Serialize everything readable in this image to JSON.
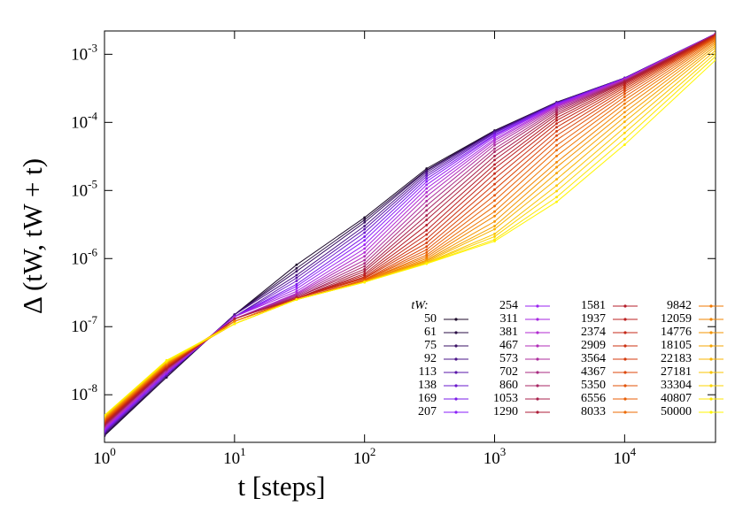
{
  "chart_data": {
    "type": "line",
    "xlabel": "t [steps]",
    "ylabel": "Δ (tW, tW + t)",
    "legend_title": "tW:",
    "log_x": true,
    "log_y": true,
    "x": [
      1,
      3,
      10,
      30,
      100,
      300,
      1000,
      3000,
      10000,
      50000
    ],
    "xlim": [
      1,
      50000
    ],
    "ylim": [
      2e-09,
      0.0022
    ],
    "xticks": [
      {
        "value": 1,
        "label": "100"
      },
      {
        "value": 10,
        "label": "101"
      },
      {
        "value": 100,
        "label": "102"
      },
      {
        "value": 1000,
        "label": "103"
      },
      {
        "value": 10000,
        "label": "104"
      }
    ],
    "yticks": [
      {
        "value": 1e-08,
        "label": "10-8"
      },
      {
        "value": 1e-07,
        "label": "10-7"
      },
      {
        "value": 1e-06,
        "label": "10-6"
      },
      {
        "value": 1e-05,
        "label": "10-5"
      },
      {
        "value": 0.0001,
        "label": "10-4"
      },
      {
        "value": 0.001,
        "label": "10-3"
      }
    ],
    "series": [
      {
        "name": "50",
        "color": "#1c0a2a",
        "values": [
          2.5e-09,
          1.8e-08,
          1.5e-07,
          8.1e-07,
          4e-06,
          2.1e-05,
          7.6e-05,
          0.000198,
          0.00045,
          0.002
        ]
      },
      {
        "name": "61",
        "color": "#2a0e45",
        "values": [
          2.6e-09,
          1.8e-08,
          1.5e-07,
          7.2e-07,
          3.7e-06,
          2e-05,
          7.5e-05,
          0.000197,
          0.000449,
          0.002
        ]
      },
      {
        "name": "75",
        "color": "#3a1165",
        "values": [
          2.6e-09,
          1.9e-08,
          1.5e-07,
          6.5e-07,
          3.4e-06,
          1.95e-05,
          7.4e-05,
          0.000196,
          0.000448,
          0.002
        ]
      },
      {
        "name": "92",
        "color": "#4a1488",
        "values": [
          2.7e-09,
          1.9e-08,
          1.5e-07,
          5.7e-07,
          3e-06,
          1.85e-05,
          7.3e-05,
          0.000194,
          0.000447,
          0.002
        ]
      },
      {
        "name": "113",
        "color": "#5a16aa",
        "values": [
          2.8e-09,
          2e-08,
          1.4e-07,
          5.2e-07,
          2.7e-06,
          1.73e-05,
          7.1e-05,
          0.000193,
          0.000446,
          0.002
        ]
      },
      {
        "name": "138",
        "color": "#6a18cc",
        "values": [
          2.9e-09,
          2e-08,
          1.4e-07,
          4.7e-07,
          2.4e-06,
          1.61e-05,
          6.9e-05,
          0.000191,
          0.000444,
          0.00199
        ]
      },
      {
        "name": "169",
        "color": "#7a1be8",
        "values": [
          2.9e-09,
          2e-08,
          1.4e-07,
          4.2e-07,
          2.1e-06,
          1.48e-05,
          6.6e-05,
          0.000188,
          0.000442,
          0.00199
        ]
      },
      {
        "name": "207",
        "color": "#8a1ef8",
        "values": [
          3e-09,
          2.1e-08,
          1.4e-07,
          3.9e-07,
          1.85e-06,
          1.35e-05,
          6.4e-05,
          0.000185,
          0.00044,
          0.00199
        ]
      },
      {
        "name": "254",
        "color": "#9a22f0",
        "values": [
          3.1e-09,
          2.1e-08,
          1.4e-07,
          3.6e-07,
          1.6e-06,
          1.21e-05,
          6.1e-05,
          0.000182,
          0.000437,
          0.00199
        ]
      },
      {
        "name": "311",
        "color": "#a626e0",
        "values": [
          3.2e-09,
          2.2e-08,
          1.4e-07,
          3.3e-07,
          1.4e-06,
          1.07e-05,
          5.7e-05,
          0.000178,
          0.000433,
          0.00199
        ]
      },
      {
        "name": "381",
        "color": "#b02ad0",
        "values": [
          3.2e-09,
          2.2e-08,
          1.3e-07,
          3.1e-07,
          1.23e-06,
          9.4e-06,
          5.4e-05,
          0.000173,
          0.000428,
          0.00198
        ]
      },
      {
        "name": "467",
        "color": "#b02cb8",
        "values": [
          3.3e-09,
          2.2e-08,
          1.3e-07,
          3e-07,
          1.08e-06,
          8.2e-06,
          5e-05,
          0.000168,
          0.000422,
          0.00198
        ]
      },
      {
        "name": "573",
        "color": "#ac2c9c",
        "values": [
          3.4e-09,
          2.3e-08,
          1.3e-07,
          2.9e-07,
          9.5e-07,
          7e-06,
          4.6e-05,
          0.000161,
          0.000415,
          0.00197
        ]
      },
      {
        "name": "702",
        "color": "#a82a80",
        "values": [
          3.5e-09,
          2.3e-08,
          1.3e-07,
          2.8e-07,
          8.5e-07,
          6e-06,
          4.1e-05,
          0.000154,
          0.00041,
          0.00197
        ]
      },
      {
        "name": "860",
        "color": "#a82664",
        "values": [
          3.5e-09,
          2.4e-08,
          1.3e-07,
          2.7e-07,
          7.7e-07,
          5.1e-06,
          3.7e-05,
          0.000146,
          0.000404,
          0.00196
        ]
      },
      {
        "name": "1053",
        "color": "#a8204c",
        "values": [
          3.6e-09,
          2.4e-08,
          1.3e-07,
          2.7e-07,
          7e-07,
          4.3e-06,
          3.2e-05,
          0.000137,
          0.000398,
          0.00195
        ]
      },
      {
        "name": "1290",
        "color": "#ac1c38",
        "values": [
          3.7e-09,
          2.4e-08,
          1.3e-07,
          2.6e-07,
          6.5e-07,
          3.7e-06,
          2.8e-05,
          0.000128,
          0.000388,
          0.00194
        ]
      },
      {
        "name": "1581",
        "color": "#b41c28",
        "values": [
          3.8e-09,
          2.5e-08,
          1.2e-07,
          2.6e-07,
          6e-07,
          3.1e-06,
          2.4e-05,
          0.000117,
          0.000375,
          0.00192
        ]
      },
      {
        "name": "1937",
        "color": "#bc2020",
        "values": [
          3.8e-09,
          2.5e-08,
          1.2e-07,
          2.6e-07,
          5.7e-07,
          2.6e-06,
          2.1e-05,
          0.000107,
          0.000361,
          0.00191
        ]
      },
      {
        "name": "2374",
        "color": "#c42818",
        "values": [
          3.9e-09,
          2.6e-08,
          1.2e-07,
          2.6e-07,
          5.4e-07,
          2.25e-06,
          1.77e-05,
          9.6e-05,
          0.000344,
          0.00189
        ]
      },
      {
        "name": "2909",
        "color": "#cc3010",
        "values": [
          4e-09,
          2.6e-08,
          1.2e-07,
          2.6e-07,
          5.2e-07,
          1.94e-06,
          1.49e-05,
          8.5e-05,
          0.000326,
          0.00186
        ]
      },
      {
        "name": "3564",
        "color": "#d43a0c",
        "values": [
          4.1e-09,
          2.6e-08,
          1.2e-07,
          2.6e-07,
          5.1e-07,
          1.7e-06,
          1.24e-05,
          7.4e-05,
          0.000306,
          0.00183
        ]
      },
      {
        "name": "4367",
        "color": "#dc4608",
        "values": [
          4.1e-09,
          2.7e-08,
          1.2e-07,
          2.5e-07,
          4.9e-07,
          1.5e-06,
          1.03e-05,
          6.4e-05,
          0.000284,
          0.0018
        ]
      },
      {
        "name": "5350",
        "color": "#e25206",
        "values": [
          4.2e-09,
          2.7e-08,
          1.2e-07,
          2.5e-07,
          4.8e-07,
          1.35e-06,
          8.5e-06,
          5.5e-05,
          0.000261,
          0.00176
        ]
      },
      {
        "name": "6556",
        "color": "#e85e04",
        "values": [
          4.3e-09,
          2.8e-08,
          1.2e-07,
          2.5e-07,
          4.8e-07,
          1.23e-06,
          7.1e-06,
          4.6e-05,
          0.000237,
          0.00171
        ]
      },
      {
        "name": "8033",
        "color": "#ec6a02",
        "values": [
          4.4e-09,
          2.8e-08,
          1.2e-07,
          2.5e-07,
          4.7e-07,
          1.13e-06,
          5.9e-06,
          3.9e-05,
          0.000212,
          0.00165
        ]
      },
      {
        "name": "9842",
        "color": "#f07800",
        "values": [
          4.4e-09,
          2.8e-08,
          1.2e-07,
          2.5e-07,
          4.7e-07,
          1.06e-06,
          4.9e-06,
          3.2e-05,
          0.000188,
          0.00159
        ]
      },
      {
        "name": "12059",
        "color": "#f28600",
        "values": [
          4.5e-09,
          2.9e-08,
          1.2e-07,
          2.5e-07,
          4.6e-07,
          1e-06,
          4.2e-06,
          2.6e-05,
          0.000164,
          0.00151
        ]
      },
      {
        "name": "14776",
        "color": "#f49400",
        "values": [
          4.6e-09,
          2.9e-08,
          1.1e-07,
          2.5e-07,
          4.6e-07,
          9.5e-07,
          3.5e-06,
          2.2e-05,
          0.000141,
          0.00143
        ]
      },
      {
        "name": "18105",
        "color": "#f6a400",
        "values": [
          4.7e-09,
          3e-08,
          1.1e-07,
          2.5e-07,
          4.6e-07,
          9.2e-07,
          3e-06,
          1.8e-05,
          0.00012,
          0.00134
        ]
      },
      {
        "name": "22183",
        "color": "#f8b400",
        "values": [
          4.7e-09,
          3e-08,
          1.1e-07,
          2.5e-07,
          4.5e-07,
          8.9e-07,
          2.7e-06,
          1.46e-05,
          0.000102,
          0.00125
        ]
      },
      {
        "name": "27181",
        "color": "#fac400",
        "values": [
          4.8e-09,
          3e-08,
          1.1e-07,
          2.5e-07,
          4.5e-07,
          8.7e-07,
          2.3e-06,
          1.18e-05,
          8.4e-05,
          0.00114
        ]
      },
      {
        "name": "33304",
        "color": "#fcd400",
        "values": [
          4.9e-09,
          3.1e-08,
          1.1e-07,
          2.5e-07,
          4.5e-07,
          8.6e-07,
          2.1e-06,
          9.8e-06,
          7e-05,
          0.00103
        ]
      },
      {
        "name": "40807",
        "color": "#fde600",
        "values": [
          5e-09,
          3.1e-08,
          1.1e-07,
          2.5e-07,
          4.5e-07,
          8.5e-07,
          1.9e-06,
          8e-06,
          5.7e-05,
          0.00093
        ]
      },
      {
        "name": "50000",
        "color": "#fff500",
        "values": [
          5e-09,
          3.2e-08,
          1.1e-07,
          2.5e-07,
          4.5e-07,
          8.4e-07,
          1.8e-06,
          6.8e-06,
          4.7e-05,
          0.00082
        ]
      }
    ]
  }
}
